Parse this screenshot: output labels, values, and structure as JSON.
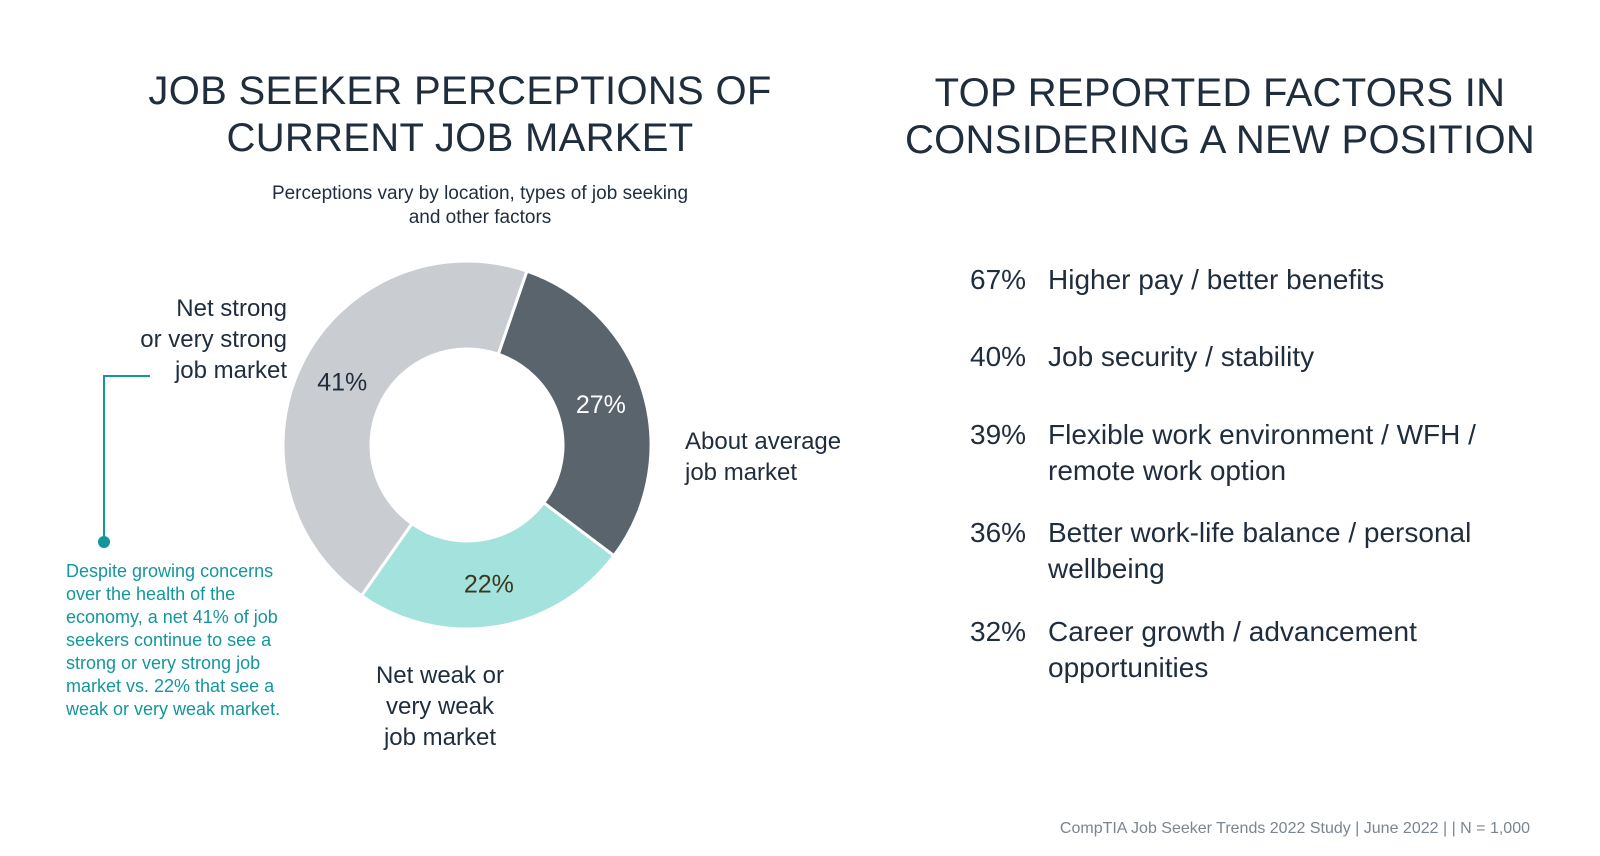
{
  "left_panel": {
    "title": "JOB SEEKER PERCEPTIONS OF\nCURRENT JOB MARKET",
    "subtitle": "Perceptions vary by location, types of job seeking and other factors",
    "annotation": "Despite growing concerns over the health of the economy, a net 41% of job seekers continue to see a strong or very strong job market vs. 22% that see a weak or very weak market."
  },
  "chart_data": {
    "type": "pie",
    "donut": true,
    "categories": [
      "Net strong or very strong job market",
      "About average job market",
      "Net weak or very weak job market"
    ],
    "values": [
      41,
      27,
      22
    ],
    "value_labels": [
      "41%",
      "27%",
      "22%"
    ],
    "display_labels": [
      "Net strong\nor very strong\njob market",
      "About average\njob market",
      "Net weak or\nvery weak\njob market"
    ],
    "colors": [
      "#c9cdd1",
      "#5a646c",
      "#a3e2dd"
    ],
    "label_colors": [
      "#1f2d3d",
      "#ffffff",
      "#3a3a1a"
    ],
    "accent": "#13979c"
  },
  "right_panel": {
    "title": "TOP REPORTED FACTORS IN\nCONSIDERING A NEW POSITION",
    "factors": [
      {
        "pct": "67%",
        "text": "Higher pay / better benefits"
      },
      {
        "pct": "40%",
        "text": "Job security / stability"
      },
      {
        "pct": "39%",
        "text": "Flexible work environment / WFH / remote work option"
      },
      {
        "pct": "36%",
        "text": "Better work-life balance / personal wellbeing"
      },
      {
        "pct": "32%",
        "text": "Career growth / advancement opportunities"
      }
    ]
  },
  "footer": "CompTIA Job Seeker Trends 2022 Study | June 2022 | | N = 1,000"
}
